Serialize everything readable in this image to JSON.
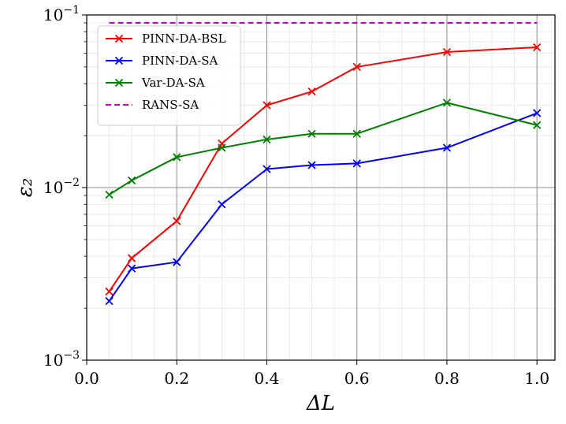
{
  "chart_data": {
    "type": "line",
    "title": "",
    "xlabel": "ΔL",
    "ylabel": "ε₂",
    "xlim": [
      0.0,
      1.04
    ],
    "ylim": [
      0.001,
      0.1
    ],
    "yscale": "log",
    "grid": true,
    "legend_position": "top-left",
    "x_ticks": [
      0.0,
      0.2,
      0.4,
      0.6,
      0.8,
      1.0
    ],
    "x_tick_labels": [
      "0.0",
      "0.2",
      "0.4",
      "0.6",
      "0.8",
      "1.0"
    ],
    "y_ticks": [
      0.001,
      0.01,
      0.1
    ],
    "y_tick_labels": [
      {
        "base": "10",
        "exp": "−3"
      },
      {
        "base": "10",
        "exp": "−2"
      },
      {
        "base": "10",
        "exp": "−1"
      }
    ],
    "series": [
      {
        "name": "PINN-DA-BSL",
        "color": "#ff0000",
        "marker": "x",
        "line_style": "solid",
        "x": [
          0.05,
          0.1,
          0.2,
          0.3,
          0.4,
          0.5,
          0.6,
          0.8,
          1.0
        ],
        "y": [
          0.0025,
          0.0039,
          0.0064,
          0.018,
          0.03,
          0.036,
          0.05,
          0.061,
          0.065
        ]
      },
      {
        "name": "PINN-DA-SA",
        "color": "#0000ff",
        "marker": "x",
        "line_style": "solid",
        "x": [
          0.05,
          0.1,
          0.2,
          0.3,
          0.4,
          0.5,
          0.6,
          0.8,
          1.0
        ],
        "y": [
          0.0022,
          0.0034,
          0.0037,
          0.008,
          0.0128,
          0.0135,
          0.0138,
          0.017,
          0.027
        ]
      },
      {
        "name": "Var-DA-SA",
        "color": "#008000",
        "marker": "x",
        "line_style": "solid",
        "x": [
          0.05,
          0.1,
          0.2,
          0.3,
          0.4,
          0.5,
          0.6,
          0.8,
          1.0
        ],
        "y": [
          0.0091,
          0.011,
          0.015,
          0.017,
          0.019,
          0.0205,
          0.0205,
          0.031,
          0.023
        ]
      },
      {
        "name": "RANS-SA",
        "color": "#bf00bf",
        "marker": "none",
        "line_style": "dashed",
        "x": [
          0.05,
          1.0
        ],
        "y": [
          0.09,
          0.09
        ]
      }
    ]
  }
}
